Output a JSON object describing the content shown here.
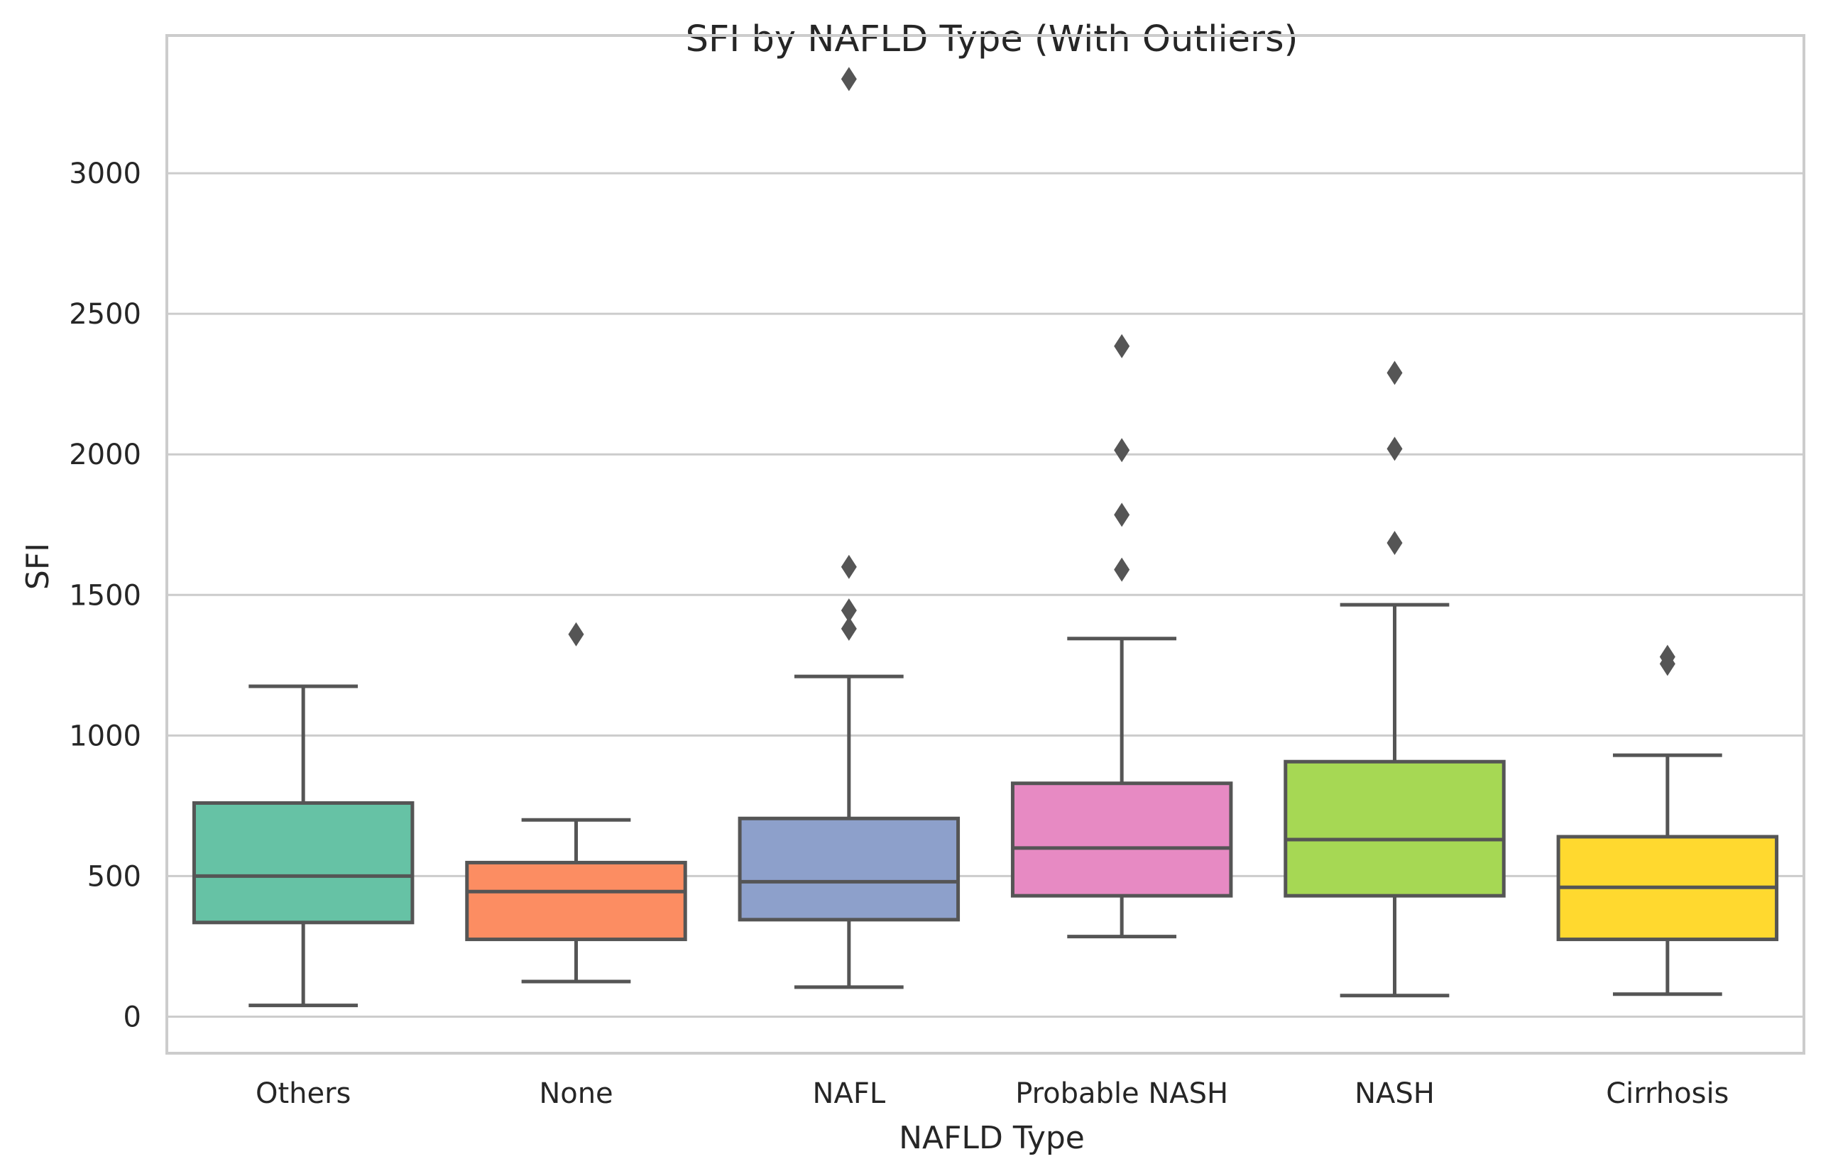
{
  "chart_data": {
    "type": "box",
    "title": "SFI by NAFLD Type (With Outliers)",
    "xlabel": "NAFLD Type",
    "ylabel": "SFI",
    "ylim": [
      -130,
      3490
    ],
    "yticks": [
      0,
      500,
      1000,
      1500,
      2000,
      2500,
      3000
    ],
    "grid": true,
    "legend": false,
    "series": [
      {
        "category": "Others",
        "color": "#66c2a5",
        "whisker_low": 40,
        "q1": 335,
        "median": 500,
        "q3": 760,
        "whisker_high": 1175,
        "outliers": []
      },
      {
        "category": "None",
        "color": "#fc8d62",
        "whisker_low": 125,
        "q1": 275,
        "median": 445,
        "q3": 548,
        "whisker_high": 700,
        "outliers": [
          1360
        ]
      },
      {
        "category": "NAFL",
        "color": "#8da0cb",
        "whisker_low": 105,
        "q1": 345,
        "median": 480,
        "q3": 705,
        "whisker_high": 1210,
        "outliers": [
          1380,
          1445,
          1600,
          3335
        ]
      },
      {
        "category": "Probable NASH",
        "color": "#e78ac3",
        "whisker_low": 285,
        "q1": 430,
        "median": 600,
        "q3": 830,
        "whisker_high": 1345,
        "outliers": [
          1590,
          1785,
          2015,
          2385
        ]
      },
      {
        "category": "NASH",
        "color": "#a6d854",
        "whisker_low": 75,
        "q1": 430,
        "median": 630,
        "q3": 907,
        "whisker_high": 1465,
        "outliers": [
          1685,
          2020,
          2290
        ]
      },
      {
        "category": "Cirrhosis",
        "color": "#ffd92f",
        "whisker_low": 80,
        "q1": 275,
        "median": 460,
        "q3": 640,
        "whisker_high": 930,
        "outliers": [
          1255,
          1280
        ]
      }
    ]
  }
}
